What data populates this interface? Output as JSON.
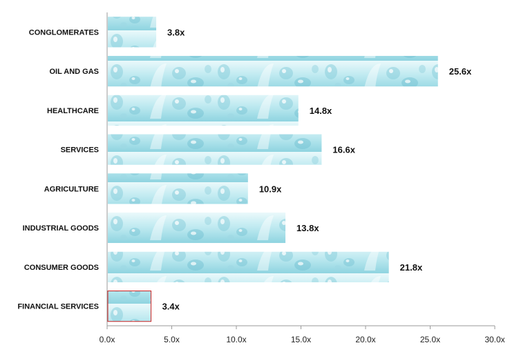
{
  "chart_data": {
    "type": "bar",
    "orientation": "horizontal",
    "categories": [
      "CONGLOMERATES",
      "OIL AND GAS",
      "HEALTHCARE",
      "SERVICES",
      "AGRICULTURE",
      "INDUSTRIAL GOODS",
      "CONSUMER GOODS",
      "FINANCIAL SERVICES"
    ],
    "values": [
      3.8,
      25.6,
      14.8,
      16.6,
      10.9,
      13.8,
      21.8,
      3.4
    ],
    "value_labels": [
      "3.8x",
      "25.6x",
      "14.8x",
      "16.6x",
      "10.9x",
      "13.8x",
      "21.8x",
      "3.4x"
    ],
    "xlim": [
      0,
      30
    ],
    "x_ticks": [
      0,
      5,
      10,
      15,
      20,
      25,
      30
    ],
    "x_tick_labels": [
      "0.0x",
      "5.0x",
      "10.0x",
      "15.0x",
      "20.0x",
      "25.0x",
      "30.0x"
    ],
    "title": "",
    "xlabel": "",
    "ylabel": "",
    "grid": false,
    "bar_fill": "water-droplet texture",
    "colors": {
      "bar_light": "#dff5f9",
      "bar_mid": "#a9e2ec",
      "bar_dark": "#6fc4d4",
      "highlight_border": "#cc2222",
      "axis": "#9a9a9a"
    },
    "highlighted_category": "FINANCIAL SERVICES"
  }
}
